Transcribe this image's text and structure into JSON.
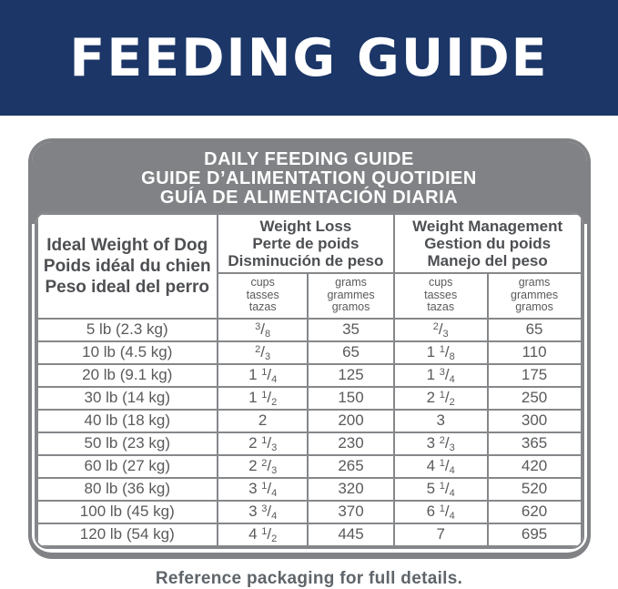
{
  "banner": {
    "title": "FEEDING GUIDE"
  },
  "table": {
    "title_lines": [
      "DAILY FEEDING GUIDE",
      "GUIDE D’ALIMENTATION QUOTIDIEN",
      "GUÍA DE ALIMENTACIÓN DIARIA"
    ],
    "col1_header_lines": [
      "Ideal Weight of Dog",
      "Poids idéal du chien",
      "Peso ideal del perro"
    ],
    "groups": {
      "weight_loss_lines": [
        "Weight Loss",
        "Perte de poids",
        "Disminución de peso"
      ],
      "weight_management_lines": [
        "Weight Management",
        "Gestion du poids",
        "Manejo del peso"
      ]
    },
    "units": {
      "cups_lines": [
        "cups",
        "tasses",
        "tazas"
      ],
      "grams_lines": [
        "grams",
        "grammes",
        "gramos"
      ]
    },
    "rows": [
      {
        "weight": "5 lb (2.3 kg)",
        "wl_cups": "3/8",
        "wl_grams": "35",
        "wm_cups": "2/3",
        "wm_grams": "65"
      },
      {
        "weight": "10 lb (4.5 kg)",
        "wl_cups": "2/3",
        "wl_grams": "65",
        "wm_cups": "1 1/8",
        "wm_grams": "110"
      },
      {
        "weight": "20 lb (9.1 kg)",
        "wl_cups": "1 1/4",
        "wl_grams": "125",
        "wm_cups": "1 3/4",
        "wm_grams": "175"
      },
      {
        "weight": "30 lb (14 kg)",
        "wl_cups": "1 1/2",
        "wl_grams": "150",
        "wm_cups": "2 1/2",
        "wm_grams": "250"
      },
      {
        "weight": "40 lb (18 kg)",
        "wl_cups": "2",
        "wl_grams": "200",
        "wm_cups": "3",
        "wm_grams": "300"
      },
      {
        "weight": "50 lb (23 kg)",
        "wl_cups": "2 1/3",
        "wl_grams": "230",
        "wm_cups": "3 2/3",
        "wm_grams": "365"
      },
      {
        "weight": "60 lb (27 kg)",
        "wl_cups": "2 2/3",
        "wl_grams": "265",
        "wm_cups": "4 1/4",
        "wm_grams": "420"
      },
      {
        "weight": "80 lb (36 kg)",
        "wl_cups": "3 1/4",
        "wl_grams": "320",
        "wm_cups": "5 1/4",
        "wm_grams": "520"
      },
      {
        "weight": "100 lb (45 kg)",
        "wl_cups": "3 3/4",
        "wl_grams": "370",
        "wm_cups": "6 1/4",
        "wm_grams": "620"
      },
      {
        "weight": "120 lb (54 kg)",
        "wl_cups": "4 1/2",
        "wl_grams": "445",
        "wm_cups": "7",
        "wm_grams": "695"
      }
    ]
  },
  "footer": {
    "note": "Reference packaging for full details."
  },
  "colors": {
    "banner_bg": "#1b3667",
    "band_gray": "#808285",
    "border_gray": "#85878a",
    "header_text": "#4d4f52",
    "data_text": "#595a5c",
    "footer_text": "#5f656a"
  }
}
